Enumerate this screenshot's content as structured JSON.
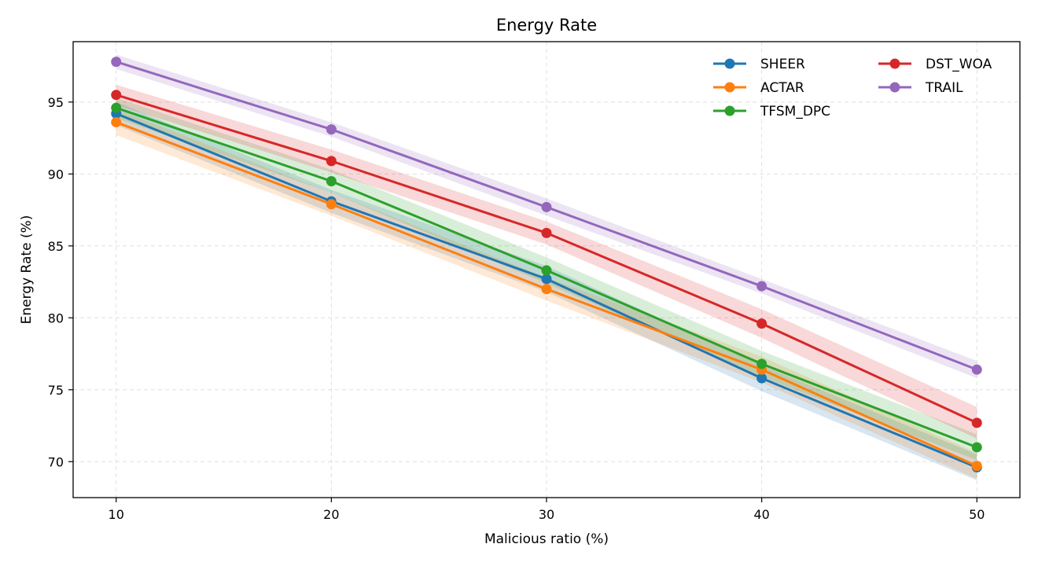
{
  "chart_data": {
    "type": "line",
    "title": "Energy Rate",
    "xlabel": "Malicious ratio (%)",
    "ylabel": "Energy Rate (%)",
    "x": [
      10,
      20,
      30,
      40,
      50
    ],
    "xlim": [
      8,
      52
    ],
    "ylim": [
      67.5,
      99.2
    ],
    "xticks": [
      10,
      20,
      30,
      40,
      50
    ],
    "yticks": [
      70,
      75,
      80,
      85,
      90,
      95
    ],
    "grid": true,
    "legend_position": "top-right",
    "series": [
      {
        "name": "SHEER",
        "color": "#1f77b4",
        "values": [
          94.2,
          88.1,
          82.7,
          75.8,
          69.6
        ],
        "band": [
          0.8,
          0.8,
          0.9,
          0.9,
          0.9
        ]
      },
      {
        "name": "ACTAR",
        "color": "#ff7f0e",
        "values": [
          93.6,
          87.9,
          82.0,
          76.4,
          69.7
        ],
        "band": [
          0.9,
          0.8,
          0.8,
          0.9,
          0.9
        ]
      },
      {
        "name": "TFSM_DPC",
        "color": "#2ca02c",
        "values": [
          94.6,
          89.5,
          83.3,
          76.8,
          71.0
        ],
        "band": [
          0.7,
          0.8,
          0.9,
          0.9,
          0.9
        ]
      },
      {
        "name": "DST_WOA",
        "color": "#d62728",
        "values": [
          95.5,
          90.9,
          85.9,
          79.6,
          72.7
        ],
        "band": [
          0.7,
          0.8,
          0.8,
          1.0,
          1.1
        ]
      },
      {
        "name": "TRAIL",
        "color": "#9467bd",
        "values": [
          97.8,
          93.1,
          87.7,
          82.2,
          76.4
        ],
        "band": [
          0.5,
          0.5,
          0.6,
          0.5,
          0.6
        ]
      }
    ]
  }
}
